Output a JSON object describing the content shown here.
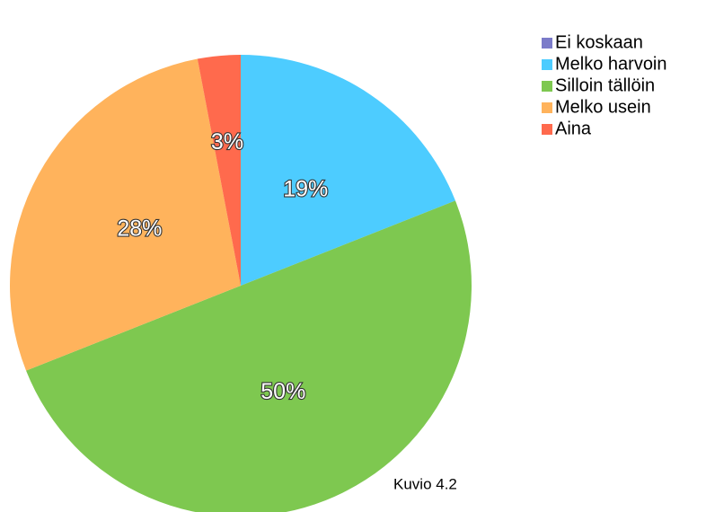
{
  "chart_data": {
    "type": "pie",
    "categories": [
      "Ei koskaan",
      "Melko harvoin",
      "Silloin tällöin",
      "Melko usein",
      "Aina"
    ],
    "values": [
      0,
      19,
      50,
      28,
      3
    ],
    "value_labels": [
      null,
      "19%",
      "50%",
      "28%",
      "3%"
    ],
    "colors": [
      "#7b7bc9",
      "#4dccff",
      "#7ec850",
      "#ffb35c",
      "#ff6a4d"
    ],
    "annotation": "Kuvio 4.2",
    "legend": "top-right"
  }
}
